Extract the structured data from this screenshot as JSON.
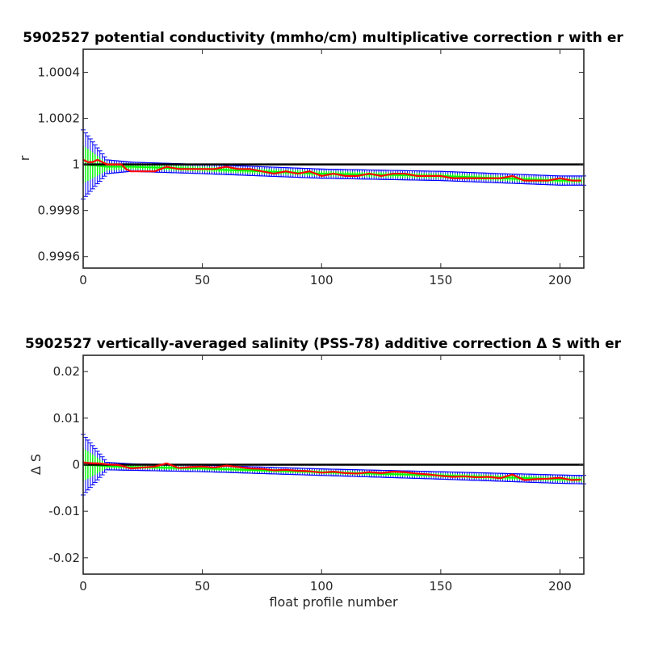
{
  "chart_data": [
    {
      "type": "line",
      "title": "5902527 potential conductivity (mmho/cm) multiplicative correction r with er",
      "xlabel": "",
      "ylabel": "r",
      "xlim": [
        0,
        210
      ],
      "ylim": [
        0.99955,
        1.0005
      ],
      "xticks": [
        0,
        50,
        100,
        150,
        200
      ],
      "xtick_labels": [
        "0",
        "50",
        "100",
        "150",
        "200"
      ],
      "yticks": [
        0.9996,
        0.9998,
        1.0,
        1.0002,
        1.0004
      ],
      "ytick_labels": [
        "0.9996",
        "0.9998",
        "1",
        "1.0002",
        "1.0004"
      ],
      "reference_line": 1.0,
      "grid": false,
      "colors": {
        "reference": "#000000",
        "fit": "#0000ff",
        "fit_error": "#00ff00",
        "data": "#ff0000"
      },
      "series": [
        {
          "x": [
            0,
            2,
            4,
            6,
            8,
            10,
            12,
            14,
            16,
            18,
            20,
            25,
            30,
            35,
            40,
            45,
            50,
            55,
            60,
            65,
            70,
            75,
            80,
            85,
            90,
            95,
            100,
            105,
            110,
            115,
            120,
            125,
            130,
            135,
            140,
            145,
            150,
            155,
            160,
            165,
            170,
            175,
            180,
            185,
            190,
            195,
            200,
            205,
            209
          ],
          "values": [
            1.00002,
            1.00001,
            1.00001,
            1.00002,
            1.00001,
            1.0,
            1.0,
            1.0,
            1.0,
            0.99998,
            0.99997,
            0.99997,
            0.99997,
            0.99999,
            0.99998,
            0.99998,
            0.99998,
            0.99998,
            0.99999,
            0.99998,
            0.99998,
            0.99997,
            0.99996,
            0.99997,
            0.99996,
            0.99997,
            0.99995,
            0.99996,
            0.99995,
            0.99995,
            0.99996,
            0.99995,
            0.99996,
            0.99996,
            0.99995,
            0.99995,
            0.99995,
            0.99994,
            0.99994,
            0.99994,
            0.99994,
            0.99994,
            0.99995,
            0.99993,
            0.99993,
            0.99993,
            0.99994,
            0.99993,
            0.99993
          ]
        }
      ],
      "fit": {
        "x": [
          0,
          10,
          20,
          50,
          100,
          150,
          200,
          209
        ],
        "values": [
          1.0,
          0.99999,
          0.99999,
          0.99998,
          0.99996,
          0.99995,
          0.99993,
          0.99993
        ],
        "error": [
          0.00015,
          3e-05,
          2e-05,
          2e-05,
          2e-05,
          2e-05,
          2e-05,
          2e-05
        ]
      }
    },
    {
      "type": "line",
      "title": "5902527 vertically-averaged salinity (PSS-78) additive correction Δ S with er",
      "xlabel": "float profile number",
      "ylabel": "Δ S",
      "xlim": [
        0,
        210
      ],
      "ylim": [
        -0.0235,
        0.0235
      ],
      "xticks": [
        0,
        50,
        100,
        150,
        200
      ],
      "xtick_labels": [
        "0",
        "50",
        "100",
        "150",
        "200"
      ],
      "yticks": [
        -0.02,
        -0.01,
        0,
        0.01,
        0.02
      ],
      "ytick_labels": [
        "-0.02",
        "-0.01",
        "0",
        "0.01",
        "0.02"
      ],
      "reference_line": 0,
      "grid": false,
      "colors": {
        "reference": "#000000",
        "fit": "#0000ff",
        "fit_error": "#00ff00",
        "data": "#ff0000"
      },
      "series": [
        {
          "x": [
            0,
            2,
            4,
            6,
            8,
            10,
            12,
            14,
            16,
            18,
            20,
            25,
            30,
            35,
            40,
            45,
            50,
            55,
            60,
            65,
            70,
            75,
            80,
            85,
            90,
            95,
            100,
            105,
            110,
            115,
            120,
            125,
            130,
            135,
            140,
            145,
            150,
            155,
            160,
            165,
            170,
            175,
            180,
            185,
            190,
            195,
            200,
            205,
            209
          ],
          "values": [
            0.0005,
            0.0004,
            0.0003,
            0.0003,
            0.0002,
            0.0001,
            0.0,
            0.0,
            -0.0002,
            -0.0005,
            -0.0008,
            -0.0006,
            -0.0004,
            0.0003,
            -0.0007,
            -0.0005,
            -0.0004,
            -0.0006,
            -0.0002,
            -0.0005,
            -0.0008,
            -0.0009,
            -0.0012,
            -0.0011,
            -0.0013,
            -0.0014,
            -0.0017,
            -0.0015,
            -0.0018,
            -0.0019,
            -0.0016,
            -0.0018,
            -0.0015,
            -0.0016,
            -0.0019,
            -0.0021,
            -0.0024,
            -0.0026,
            -0.0025,
            -0.0027,
            -0.0026,
            -0.0029,
            -0.0021,
            -0.0033,
            -0.0031,
            -0.003,
            -0.0028,
            -0.0033,
            -0.0032
          ]
        }
      ],
      "fit": {
        "x": [
          0,
          10,
          20,
          50,
          100,
          150,
          200,
          209
        ],
        "values": [
          0.0,
          -0.0003,
          -0.0005,
          -0.0008,
          -0.0016,
          -0.0023,
          -0.0031,
          -0.0032
        ],
        "error": [
          0.0065,
          0.0008,
          0.0007,
          0.0007,
          0.0007,
          0.0008,
          0.0009,
          0.0009
        ]
      }
    }
  ]
}
